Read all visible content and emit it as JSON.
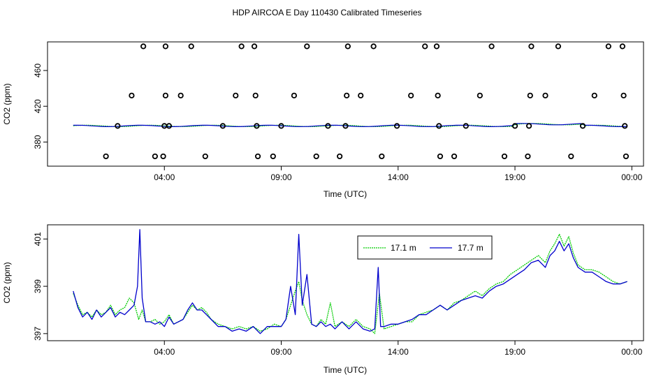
{
  "title": "HDP AIRCOA E  Day 110430  Calibrated Timeseries",
  "chart_data": [
    {
      "type": "scatter",
      "xlabel": "Time (UTC)",
      "ylabel": "CO2 (ppm)",
      "xlim": [
        -1.0,
        24.5
      ],
      "ylim": [
        353,
        492
      ],
      "xticks": [
        4,
        9,
        14,
        19,
        24
      ],
      "xticklabels": [
        "04:00",
        "09:00",
        "14:00",
        "19:00",
        "00:00"
      ],
      "yticks": [
        380,
        420,
        460
      ],
      "yticklabels": [
        "380",
        "420",
        "460"
      ],
      "grid": false,
      "series": [
        {
          "points": [
            [
              1.5,
              364
            ],
            [
              2.0,
              398
            ],
            [
              3.1,
              487
            ],
            [
              2.6,
              432
            ],
            [
              3.6,
              364
            ],
            [
              4.2,
              398
            ],
            [
              3.95,
              364
            ],
            [
              4.0,
              398
            ],
            [
              4.05,
              487
            ],
            [
              4.05,
              432
            ],
            [
              4.7,
              432
            ],
            [
              5.15,
              487
            ],
            [
              5.75,
              364
            ],
            [
              6.5,
              398
            ],
            [
              7.05,
              432
            ],
            [
              7.3,
              487
            ],
            [
              7.85,
              487
            ],
            [
              7.9,
              432
            ],
            [
              7.95,
              398
            ],
            [
              8.0,
              364
            ],
            [
              8.65,
              364
            ],
            [
              9.0,
              398
            ],
            [
              9.55,
              432
            ],
            [
              10.1,
              487
            ],
            [
              10.5,
              364
            ],
            [
              11.0,
              398
            ],
            [
              11.5,
              364
            ],
            [
              11.75,
              398
            ],
            [
              11.8,
              432
            ],
            [
              11.85,
              487
            ],
            [
              12.4,
              432
            ],
            [
              12.95,
              487
            ],
            [
              13.3,
              364
            ],
            [
              13.95,
              398
            ],
            [
              14.55,
              432
            ],
            [
              15.15,
              487
            ],
            [
              15.65,
              487
            ],
            [
              15.7,
              432
            ],
            [
              15.75,
              398
            ],
            [
              15.8,
              364
            ],
            [
              16.4,
              364
            ],
            [
              16.9,
              398
            ],
            [
              17.5,
              432
            ],
            [
              18.0,
              487
            ],
            [
              18.55,
              364
            ],
            [
              19.0,
              398
            ],
            [
              19.55,
              364
            ],
            [
              19.6,
              398
            ],
            [
              19.65,
              432
            ],
            [
              19.7,
              487
            ],
            [
              20.3,
              432
            ],
            [
              20.85,
              487
            ],
            [
              21.4,
              364
            ],
            [
              21.9,
              398
            ],
            [
              22.4,
              432
            ],
            [
              23.0,
              487
            ],
            [
              23.6,
              487
            ],
            [
              23.65,
              432
            ],
            [
              23.7,
              398
            ],
            [
              23.75,
              364
            ]
          ]
        }
      ],
      "lines": [
        {
          "color": "#00cc00",
          "dashed": true,
          "y": 398
        },
        {
          "color": "#0000cc",
          "dashed": false,
          "y": 398
        }
      ]
    },
    {
      "type": "line",
      "xlabel": "Time (UTC)",
      "ylabel": "CO2 (ppm)",
      "xlim": [
        -1.0,
        24.5
      ],
      "ylim": [
        396.7,
        401.6
      ],
      "xticks": [
        4,
        9,
        14,
        19,
        24
      ],
      "xticklabels": [
        "04:00",
        "09:00",
        "14:00",
        "19:00",
        "00:00"
      ],
      "yticks": [
        397,
        399,
        401
      ],
      "yticklabels": [
        "397",
        "399",
        "401"
      ],
      "grid": false,
      "legend": "top-center",
      "series": [
        {
          "name": "17.1 m",
          "color": "#00cc00",
          "dashed": true,
          "x": [
            0.1,
            0.3,
            0.5,
            0.7,
            0.9,
            1.1,
            1.3,
            1.5,
            1.7,
            1.9,
            2.1,
            2.3,
            2.5,
            2.7,
            2.9,
            3.05,
            3.2,
            3.4,
            3.6,
            3.8,
            4.0,
            4.2,
            4.4,
            4.6,
            4.8,
            5.0,
            5.2,
            5.4,
            5.6,
            5.8,
            6.0,
            6.3,
            6.6,
            6.9,
            7.2,
            7.5,
            7.8,
            8.1,
            8.4,
            8.7,
            9.0,
            9.2,
            9.4,
            9.6,
            9.75,
            9.9,
            10.1,
            10.3,
            10.5,
            10.7,
            10.9,
            11.1,
            11.3,
            11.6,
            11.9,
            12.2,
            12.5,
            12.8,
            13.0,
            13.2,
            13.4,
            13.7,
            14.0,
            14.3,
            14.6,
            14.9,
            15.2,
            15.5,
            15.8,
            16.1,
            16.4,
            16.7,
            17.0,
            17.3,
            17.6,
            17.9,
            18.2,
            18.5,
            18.8,
            19.1,
            19.4,
            19.7,
            20.0,
            20.3,
            20.5,
            20.7,
            20.9,
            21.1,
            21.3,
            21.5,
            21.7,
            22.0,
            22.3,
            22.6,
            22.9,
            23.2,
            23.5,
            23.8
          ],
          "y": [
            398.7,
            398.2,
            397.8,
            397.9,
            397.7,
            398.0,
            397.8,
            397.9,
            398.2,
            397.8,
            398.0,
            398.1,
            398.5,
            398.3,
            397.6,
            398.0,
            397.5,
            397.5,
            397.6,
            397.4,
            397.5,
            397.8,
            397.4,
            397.5,
            397.6,
            397.9,
            398.2,
            398.0,
            398.1,
            397.9,
            397.6,
            397.4,
            397.3,
            397.2,
            397.3,
            397.2,
            397.3,
            397.1,
            397.2,
            397.4,
            397.3,
            397.6,
            398.2,
            398.8,
            399.2,
            398.4,
            397.8,
            397.4,
            397.3,
            397.6,
            397.4,
            398.3,
            397.3,
            397.5,
            397.3,
            397.6,
            397.3,
            397.2,
            397.0,
            398.7,
            397.2,
            397.3,
            397.4,
            397.5,
            397.5,
            397.8,
            397.9,
            398.0,
            398.2,
            398.0,
            398.3,
            398.4,
            398.6,
            398.8,
            398.6,
            398.9,
            399.1,
            399.2,
            399.5,
            399.7,
            399.9,
            400.1,
            400.3,
            400.0,
            400.5,
            400.8,
            401.2,
            400.7,
            401.1,
            400.4,
            399.9,
            399.7,
            399.7,
            399.6,
            399.4,
            399.2,
            399.1,
            399.2
          ]
        },
        {
          "name": "17.7 m",
          "color": "#0000cc",
          "dashed": false,
          "x": [
            0.1,
            0.3,
            0.5,
            0.7,
            0.9,
            1.1,
            1.3,
            1.5,
            1.7,
            1.9,
            2.1,
            2.3,
            2.5,
            2.7,
            2.85,
            2.95,
            3.05,
            3.2,
            3.4,
            3.6,
            3.8,
            4.0,
            4.2,
            4.4,
            4.6,
            4.8,
            5.0,
            5.2,
            5.4,
            5.6,
            5.8,
            6.0,
            6.3,
            6.6,
            6.9,
            7.2,
            7.5,
            7.8,
            8.1,
            8.4,
            8.7,
            9.0,
            9.2,
            9.4,
            9.6,
            9.75,
            9.9,
            10.1,
            10.3,
            10.5,
            10.7,
            10.9,
            11.1,
            11.3,
            11.6,
            11.9,
            12.2,
            12.5,
            12.8,
            13.0,
            13.15,
            13.25,
            13.4,
            13.7,
            14.0,
            14.3,
            14.6,
            14.9,
            15.2,
            15.5,
            15.8,
            16.1,
            16.4,
            16.7,
            17.0,
            17.3,
            17.6,
            17.9,
            18.2,
            18.5,
            18.8,
            19.1,
            19.4,
            19.7,
            20.0,
            20.3,
            20.5,
            20.7,
            20.9,
            21.1,
            21.3,
            21.5,
            21.7,
            22.0,
            22.3,
            22.6,
            22.9,
            23.2,
            23.5,
            23.8
          ],
          "y": [
            398.8,
            398.1,
            397.7,
            397.9,
            397.6,
            398.0,
            397.7,
            397.9,
            398.1,
            397.7,
            397.9,
            397.8,
            398.0,
            398.2,
            399.0,
            401.4,
            398.5,
            397.5,
            397.5,
            397.4,
            397.5,
            397.3,
            397.7,
            397.4,
            397.5,
            397.6,
            398.0,
            398.3,
            398.0,
            398.0,
            397.8,
            397.6,
            397.3,
            397.3,
            397.1,
            397.2,
            397.1,
            397.3,
            397.0,
            397.3,
            397.3,
            397.3,
            397.6,
            399.0,
            397.8,
            401.2,
            398.2,
            399.5,
            397.4,
            397.3,
            397.5,
            397.3,
            397.4,
            397.2,
            397.5,
            397.2,
            397.5,
            397.2,
            397.1,
            397.2,
            399.8,
            397.3,
            397.3,
            397.4,
            397.4,
            397.5,
            397.6,
            397.8,
            397.8,
            398.0,
            398.2,
            398.0,
            398.2,
            398.4,
            398.5,
            398.6,
            398.5,
            398.8,
            399.0,
            399.1,
            399.3,
            399.5,
            399.7,
            400.0,
            400.1,
            399.8,
            400.3,
            400.5,
            400.9,
            400.5,
            400.8,
            400.2,
            399.8,
            399.6,
            399.6,
            399.4,
            399.2,
            399.1,
            399.1,
            399.2
          ]
        }
      ]
    }
  ]
}
